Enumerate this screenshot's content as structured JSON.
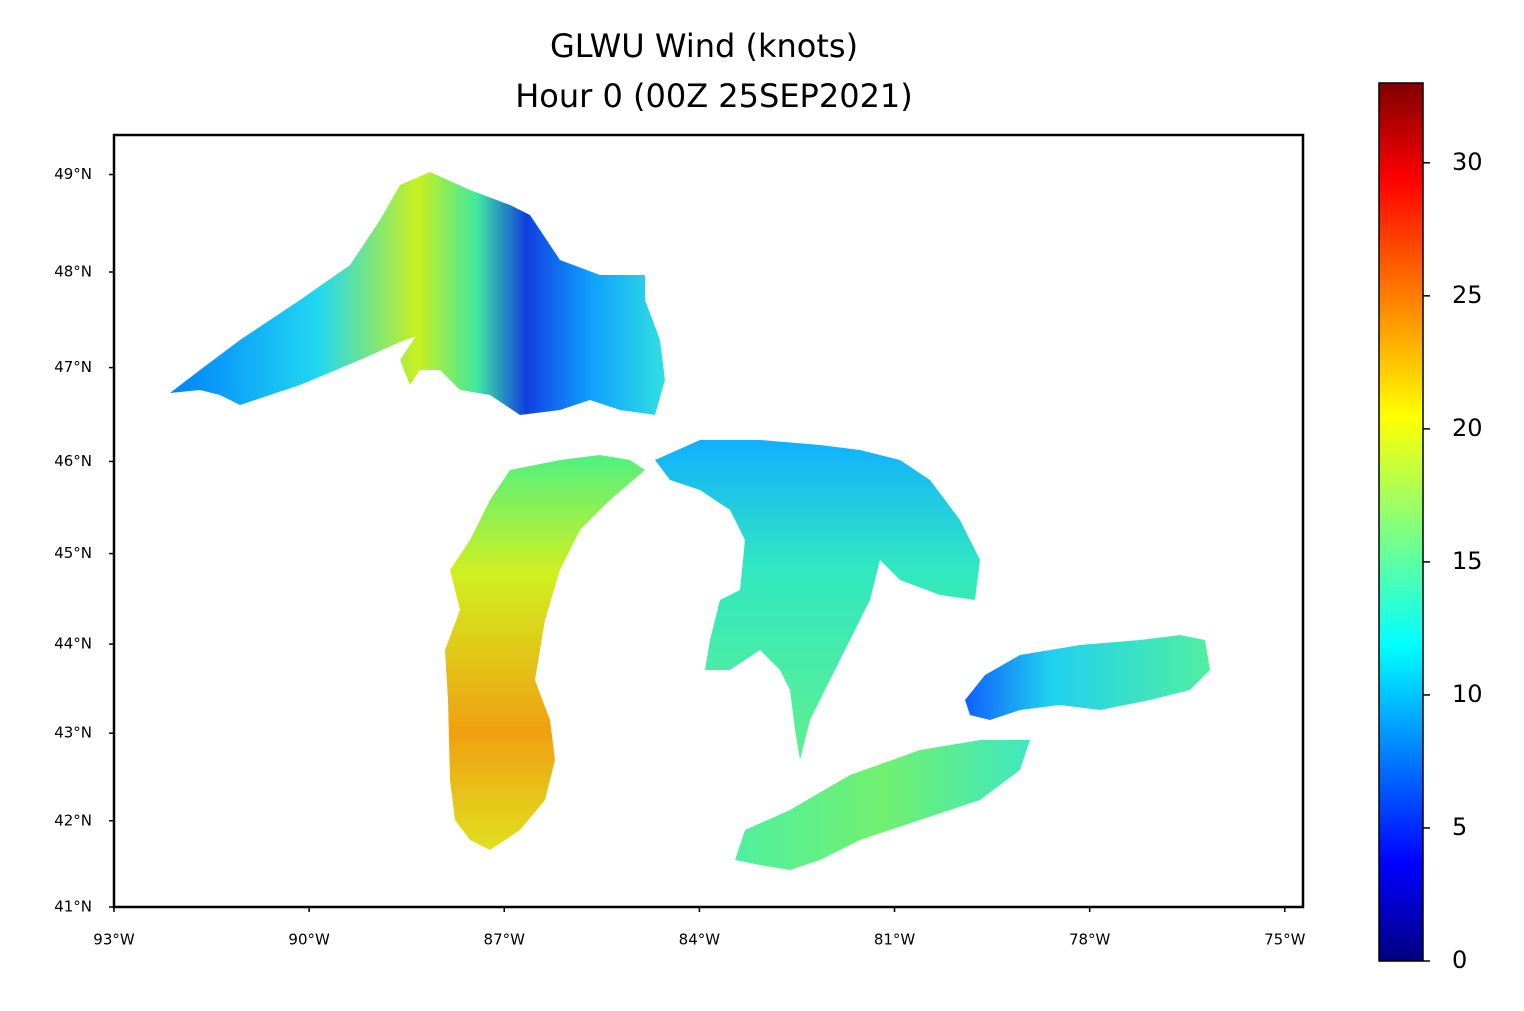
{
  "chart_data": {
    "type": "map",
    "title": "GLWU Wind (knots)",
    "subtitle": "Hour 0 (00Z 25SEP2021)",
    "projection": "mercator",
    "xlim": [
      -93,
      -74.72
    ],
    "xticks": [
      {
        "value": -93,
        "label": "93°W"
      },
      {
        "value": -90,
        "label": "90°W"
      },
      {
        "value": -87,
        "label": "87°W"
      },
      {
        "value": -84,
        "label": "84°W"
      },
      {
        "value": -81,
        "label": "81°W"
      },
      {
        "value": -78,
        "label": "78°W"
      },
      {
        "value": -75,
        "label": "75°W"
      }
    ],
    "ylim": [
      41,
      49.4
    ],
    "yticks": [
      {
        "value": 41,
        "label": "41°N"
      },
      {
        "value": 42,
        "label": "42°N"
      },
      {
        "value": 43,
        "label": "43°N"
      },
      {
        "value": 44,
        "label": "44°N"
      },
      {
        "value": 45,
        "label": "45°N"
      },
      {
        "value": 46,
        "label": "46°N"
      },
      {
        "value": 47,
        "label": "47°N"
      },
      {
        "value": 48,
        "label": "48°N"
      },
      {
        "value": 49,
        "label": "49°N"
      }
    ],
    "colorbar": {
      "colormap": "jet",
      "clim": [
        0,
        33
      ],
      "ticks": [
        0,
        5,
        10,
        15,
        20,
        25,
        30
      ]
    }
  }
}
